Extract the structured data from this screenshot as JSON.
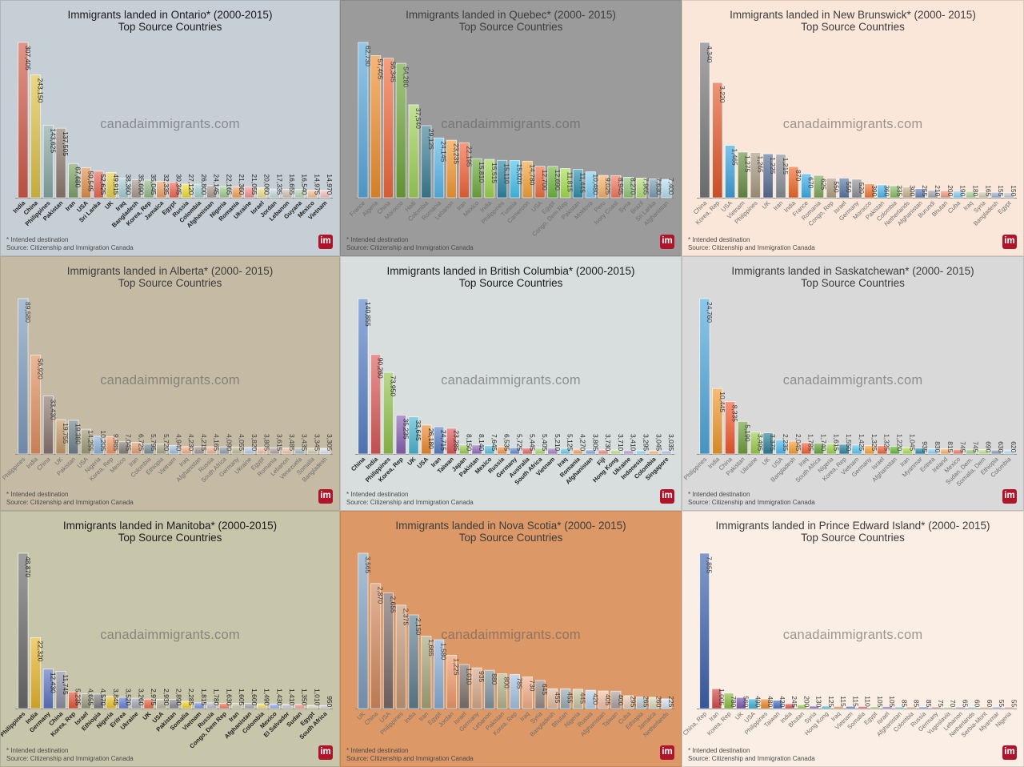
{
  "watermark": "canadaimmigrants.com",
  "footnote": "* Intended destination",
  "source": "Source: Citizenship and Immigration Canada",
  "logo_text": "im",
  "chart_data": [
    {
      "type": "bar",
      "province": "Ontario",
      "title": "Immigrants landed in Ontario* (2000-2015)",
      "subtitle": "Top Source Countries",
      "xlabel": "",
      "ylabel": "",
      "grid": false,
      "background": "#c6cfd5",
      "title_style": "dark",
      "label_style": "bold",
      "categories": [
        "India",
        "China",
        "Philippines",
        "Pakistan",
        "Iran",
        "USA",
        "Sri Lanka",
        "UK",
        "Iraq",
        "Bangladesh",
        "Korea, Rep",
        "Jamaica",
        "Egypt",
        "Russia",
        "Colombia",
        "Afghanistan",
        "Nigeria",
        "Romania",
        "Ukraine",
        "Israel",
        "Jordan",
        "Lebanon",
        "Guyana",
        "Mexico",
        "Vietnam"
      ],
      "values": [
        307405,
        243150,
        143625,
        137505,
        67680,
        59545,
        52625,
        49915,
        38360,
        35690,
        35045,
        32335,
        30345,
        27120,
        26800,
        24145,
        22165,
        21360,
        21055,
        20060,
        17335,
        16655,
        16540,
        14975,
        14970
      ],
      "colors": [
        "#cf5a4a",
        "#ddc248",
        "#88a8a5",
        "#8d7a6f",
        "#7fa46a",
        "#e2914f",
        "#e86a57",
        "#ead24a",
        "#a9cfd3",
        "#a89a90",
        "#98bb8b",
        "#eea46b",
        "#ee6a55",
        "#f2de3a",
        "#a7cfd0",
        "#ab9a8f",
        "#a3cc94",
        "#f2a560",
        "#f29592",
        "#efe39a",
        "#c7dce0",
        "#d2c4b8",
        "#bcd8b6",
        "#f5c39a",
        "#f6c2c0"
      ]
    },
    {
      "type": "bar",
      "province": "Quebec",
      "title": "Immigrants landed in Quebec* (2000- 2015)",
      "subtitle": "Top Source Countries",
      "xlabel": "",
      "ylabel": "",
      "grid": false,
      "background": "#9b9b9b",
      "title_style": "dim",
      "label_style": "light",
      "categories": [
        "France",
        "Algeria",
        "China",
        "Morocco",
        "Haiti",
        "Colombia",
        "Romania",
        "Lebanon",
        "Iran",
        "Mexico",
        "India",
        "Philippines",
        "Tunisia",
        "Cameroon",
        "USA",
        "Egypt",
        "Congo, Dem Rep",
        "Pakistan",
        "Moldova",
        "Peru",
        "Ivory Coast",
        "Syria",
        "Brazil",
        "Sri Lanka",
        "Afghanistan"
      ],
      "values": [
        62730,
        57405,
        56345,
        54280,
        37540,
        29125,
        24145,
        23235,
        22195,
        15810,
        15515,
        15110,
        15020,
        14780,
        12700,
        12690,
        11815,
        11445,
        10480,
        9025,
        8945,
        8270,
        7965,
        7630,
        7400
      ],
      "colors": [
        "#5aa9dc",
        "#ef8f2e",
        "#ee6a3c",
        "#6fa63a",
        "#9fd35a",
        "#3d7f95",
        "#5bb7ea",
        "#f59a36",
        "#f2643a",
        "#6faa3e",
        "#9fd650",
        "#2f87a5",
        "#48c2ef",
        "#f7a53a",
        "#ef6f3e",
        "#6fb840",
        "#a6e050",
        "#2d90ad",
        "#7fcff2",
        "#f8b36a",
        "#f47a5f",
        "#95c87b",
        "#b6e07a",
        "#7e9fb0",
        "#b8e0f2"
      ]
    },
    {
      "type": "bar",
      "province": "New Brunswick",
      "title": "Immigrants landed in New Brunswick* (2000- 2015)",
      "subtitle": "Top Source Countries",
      "xlabel": "",
      "ylabel": "",
      "grid": false,
      "background": "#fbe7d9",
      "title_style": "dim",
      "label_style": "light",
      "categories": [
        "China",
        "Korea, Rep",
        "USA",
        "Vietnam",
        "Philippines",
        "UK",
        "Iran",
        "India",
        "France",
        "Romania",
        "Congo, Rep",
        "Israel",
        "Germany",
        "Morocco",
        "Pakistan",
        "Colombia",
        "Netherlands",
        "Afghanistan",
        "Burundi",
        "Bhutan",
        "Cuba",
        "Iraq",
        "Syria",
        "Bangladesh",
        "Egypt"
      ],
      "values": [
        4340,
        3220,
        1465,
        1275,
        1265,
        1225,
        1215,
        870,
        670,
        625,
        550,
        550,
        520,
        390,
        360,
        335,
        300,
        255,
        210,
        200,
        190,
        180,
        165,
        155,
        150
      ],
      "colors": [
        "#77787a",
        "#e25a2e",
        "#3fa3dc",
        "#6a8f46",
        "#a99b82",
        "#5a6f95",
        "#8a8f96",
        "#ef6a2a",
        "#3fb0e8",
        "#7fa95c",
        "#b4a184",
        "#5b77a6",
        "#8f9398",
        "#f47a3a",
        "#4fbbf0",
        "#8cbf6a",
        "#c8b592",
        "#6b86bc",
        "#a7abb0",
        "#f59a80",
        "#8cd1f5",
        "#b0d6a0",
        "#d9cfb7",
        "#a2b2d6",
        "#c8ccd1"
      ]
    },
    {
      "type": "bar",
      "province": "Alberta",
      "title": "Immigrants landed in Alberta* (2000- 2015)",
      "subtitle": "Top Source Countries",
      "xlabel": "",
      "ylabel": "",
      "grid": false,
      "background": "#c5bba5",
      "title_style": "dim",
      "label_style": "light",
      "categories": [
        "Philippines",
        "India",
        "China",
        "UK",
        "Pakistan",
        "USA",
        "Nigeria",
        "Korea, Rep",
        "Mexico",
        "Iran",
        "Colombia",
        "Ethiopia",
        "Vietnam",
        "Iraq",
        "Afghanistan",
        "Russia",
        "South Africa",
        "Germany",
        "Ukraine",
        "Egypt",
        "Romania",
        "Lebanon",
        "Venezuela",
        "Somalia",
        "Bangladesh"
      ],
      "values": [
        89580,
        56920,
        33430,
        19755,
        19380,
        14255,
        10205,
        9985,
        7045,
        6725,
        5795,
        5720,
        4940,
        4230,
        4215,
        4165,
        4090,
        4055,
        3820,
        3805,
        3615,
        3485,
        3435,
        3345,
        3305
      ],
      "colors": [
        "#7e9bbb",
        "#e08f5f",
        "#8a7670",
        "#c69b6c",
        "#6f8289",
        "#9f9a76",
        "#8fb3d9",
        "#ef9a66",
        "#8a7d77",
        "#e3a27a",
        "#7b8f98",
        "#aca888",
        "#a6c4e2",
        "#f3b088",
        "#a4968f",
        "#efb596",
        "#91a3ab",
        "#c0bb9a",
        "#bcd0e6",
        "#f4c1a8",
        "#b2a6a0",
        "#f1c7ae",
        "#aebac0",
        "#d3cdb0",
        "#dbe4ef"
      ]
    },
    {
      "type": "bar",
      "province": "British Columbia",
      "title": "Immigrants landed in British Columbia* (2000-2015)",
      "subtitle": "Top Source Countries",
      "xlabel": "",
      "ylabel": "",
      "grid": false,
      "background": "#d8dedd",
      "title_style": "dark",
      "label_style": "bold",
      "categories": [
        "China",
        "India",
        "Philippines",
        "Korea, Rep",
        "UK",
        "USA",
        "Iran",
        "Taiwan",
        "Japan",
        "Pakistan",
        "Mexico",
        "Russia",
        "Germany",
        "Australia",
        "South Africa",
        "Vietnam",
        "Iraq",
        "Romania",
        "Afghanistan",
        "Fiji",
        "Hong Kong",
        "Ukraine",
        "Indonesia",
        "Colombia",
        "Singapore"
      ],
      "values": [
        140855,
        90260,
        73950,
        35235,
        33645,
        26180,
        24715,
        23285,
        8150,
        8140,
        7645,
        6535,
        5725,
        5445,
        5405,
        5210,
        5125,
        4270,
        3805,
        3730,
        3710,
        3410,
        3295,
        3045,
        3035
      ],
      "colors": [
        "#5a82c6",
        "#d95a5a",
        "#93c34e",
        "#8a62b0",
        "#4db6d2",
        "#ef8a2e",
        "#5a82c6",
        "#e0595a",
        "#9fcf5a",
        "#9670bd",
        "#5fc0dc",
        "#f39a4f",
        "#6a8ed2",
        "#e56b6a",
        "#b1d97a",
        "#a684c8",
        "#72ccea",
        "#f5a766",
        "#8aa8dd",
        "#ee8b8a",
        "#c3e29a",
        "#bca4d6",
        "#9cdcf0",
        "#f8bf8d",
        "#b3c6ea"
      ]
    },
    {
      "type": "bar",
      "province": "Saskatchewan",
      "title": "Immigrants landed in Saskatchewan* (2000- 2015)",
      "subtitle": "Top Source Countries",
      "xlabel": "",
      "ylabel": "",
      "grid": false,
      "background": "#d9d9d9",
      "title_style": "dim",
      "label_style": "light",
      "categories": [
        "Philippines",
        "India",
        "China",
        "Pakistan",
        "Ukraine",
        "UK",
        "USA",
        "Bangladesh",
        "Iraq",
        "South Africa",
        "Nigeria",
        "Korea, Rep",
        "Vietnam",
        "Germany",
        "Israel",
        "Afghanistan",
        "Iran",
        "Myanmar",
        "Eritrea",
        "Ireland",
        "Mexico",
        "Sudan, Dem.",
        "Somalia, Dem",
        "Ethiopia",
        "Colombia"
      ],
      "values": [
        24760,
        10445,
        8335,
        5190,
        3495,
        3375,
        2235,
        2045,
        1785,
        1740,
        1615,
        1550,
        1425,
        1325,
        1325,
        1220,
        1045,
        935,
        830,
        815,
        745,
        745,
        690,
        630,
        620
      ],
      "colors": [
        "#4fa7db",
        "#ef9a2e",
        "#ef5a2e",
        "#6e9f3c",
        "#9ccd4e",
        "#2d7f95",
        "#4fbbf0",
        "#f5a03a",
        "#f2643a",
        "#6aa63e",
        "#9fd650",
        "#2d86a0",
        "#5dc8f2",
        "#f8a83e",
        "#ef6a3e",
        "#6cb840",
        "#b3e25a",
        "#2f8fab",
        "#8fd5f5",
        "#f8b76a",
        "#f4806a",
        "#a5d08a",
        "#c2e88a",
        "#8aa4b2",
        "#bfe4f5"
      ]
    },
    {
      "type": "bar",
      "province": "Manitoba",
      "title": "Immigrants landed in Manitoba* (2000-2015)",
      "subtitle": "Top Source Countries",
      "xlabel": "",
      "ylabel": "",
      "grid": false,
      "background": "#c7c6ab",
      "title_style": "dark",
      "label_style": "bold",
      "categories": [
        "Philippines",
        "India",
        "Germany",
        "China",
        "Korea, Rep",
        "Israel",
        "Ethiopia",
        "Nigeria",
        "Eritrea",
        "Ukraine",
        "UK",
        "USA",
        "Pakistan",
        "Somalia",
        "Vietnam",
        "Russia",
        "Congo, Dem Rep",
        "Iran",
        "Afghanistan",
        "Colombia",
        "Mexico",
        "El Salvador",
        "Sudan",
        "Egypt",
        "South Africa"
      ],
      "values": [
        48870,
        22320,
        12430,
        11745,
        5235,
        4655,
        4570,
        3845,
        3520,
        3260,
        2975,
        2930,
        2890,
        2285,
        1815,
        1780,
        1630,
        1605,
        1600,
        1490,
        1430,
        1410,
        1350,
        1010,
        950
      ],
      "colors": [
        "#6a6a6a",
        "#e6b52c",
        "#5c74c2",
        "#8e90a3",
        "#e2583a",
        "#9a9a7e",
        "#7d7d82",
        "#eec52c",
        "#6a82d0",
        "#a6a8b8",
        "#ea6a4a",
        "#b8b79c",
        "#8c8c90",
        "#f2d52c",
        "#7a92dc",
        "#b8b9c6",
        "#ef7a5a",
        "#cac9ae",
        "#a8a8ac",
        "#f3dc6a",
        "#98aee6",
        "#c9cad4",
        "#f3a092",
        "#dcdcc4",
        "#d0d0d4"
      ]
    },
    {
      "type": "bar",
      "province": "Nova Scotia",
      "title": "Immigrants landed in Nova Scotia* (2000- 2015)",
      "subtitle": "Top Source Countries",
      "xlabel": "",
      "ylabel": "",
      "grid": false,
      "background": "#dc9866",
      "title_style": "dim",
      "label_style": "light",
      "categories": [
        "UK",
        "China",
        "USA",
        "Philippines",
        "India",
        "Iran",
        "Egypt",
        "Jordan",
        "Israel",
        "Germany",
        "Lebanon",
        "Pakistan",
        "Korea, Rep",
        "Iraq",
        "Syria",
        "Bangladesh",
        "Bhutan",
        "Nigeria",
        "Russia",
        "Afghanistan",
        "Taiwan",
        "Cuba",
        "Ethiopia",
        "Jamaica",
        "Netherlands"
      ],
      "values": [
        3565,
        2870,
        2655,
        2375,
        2150,
        1665,
        1580,
        1225,
        1010,
        935,
        880,
        800,
        785,
        730,
        645,
        455,
        455,
        445,
        420,
        405,
        400,
        295,
        265,
        260,
        225
      ],
      "colors": [
        "#7f9fbf",
        "#d28a5e",
        "#7a6a66",
        "#c59a78",
        "#5f7e8e",
        "#a9a478",
        "#8aaed6",
        "#f09a6a",
        "#7e726c",
        "#d7a88a",
        "#80949e",
        "#b8b48c",
        "#a5c2e2",
        "#f4ae88",
        "#978a84",
        "#e1bc9e",
        "#9aacb4",
        "#cac6a2",
        "#bcd2ea",
        "#f6c2a8",
        "#aea29c",
        "#ebcdb4",
        "#b8c6cc",
        "#dcd8bc",
        "#d6e2f0"
      ]
    },
    {
      "type": "bar",
      "province": "Prince Edward Island",
      "title": "Immigrants landed in Prince Edward Island* (2000- 2015)",
      "subtitle": "Top Source Countries",
      "xlabel": "",
      "ylabel": "",
      "grid": false,
      "background": "#fbeee4",
      "title_style": "dim",
      "label_style": "light",
      "categories": [
        "China, Rep",
        "Iran",
        "Korea, Rep",
        "UK",
        "USA",
        "Philippines",
        "Taiwan",
        "India",
        "Bhutan",
        "Syria",
        "Hong Kong",
        "Iraq",
        "Vietnam",
        "Somalia",
        "Egypt",
        "Israel",
        "Afghanistan",
        "Colombia",
        "Russia",
        "Germany",
        "Yugoslavia",
        "Lebanon",
        "Netherlands",
        "Serbia-Mont",
        "Myanmar",
        "Nigeria"
      ],
      "values": [
        7855,
        1005,
        780,
        560,
        490,
        480,
        420,
        245,
        200,
        130,
        125,
        115,
        115,
        110,
        105,
        105,
        85,
        85,
        85,
        75,
        70,
        65,
        60,
        60,
        55,
        55
      ],
      "colors": [
        "#3d62ae",
        "#d24a4a",
        "#8bbd3e",
        "#7d56b0",
        "#3fb0d2",
        "#ef8a2a",
        "#4a72c0",
        "#e05858",
        "#a2cf58",
        "#9070c0",
        "#5cc0e0",
        "#f29a4a",
        "#5a86d0",
        "#e86868",
        "#b6dc78",
        "#a488cc",
        "#74cce8",
        "#f5aa66",
        "#7a9cde",
        "#ee8888",
        "#c8e69c",
        "#baa2d8",
        "#96d8f0",
        "#f8bc88",
        "#9eb6e8",
        "#f2a4a4"
      ]
    }
  ]
}
